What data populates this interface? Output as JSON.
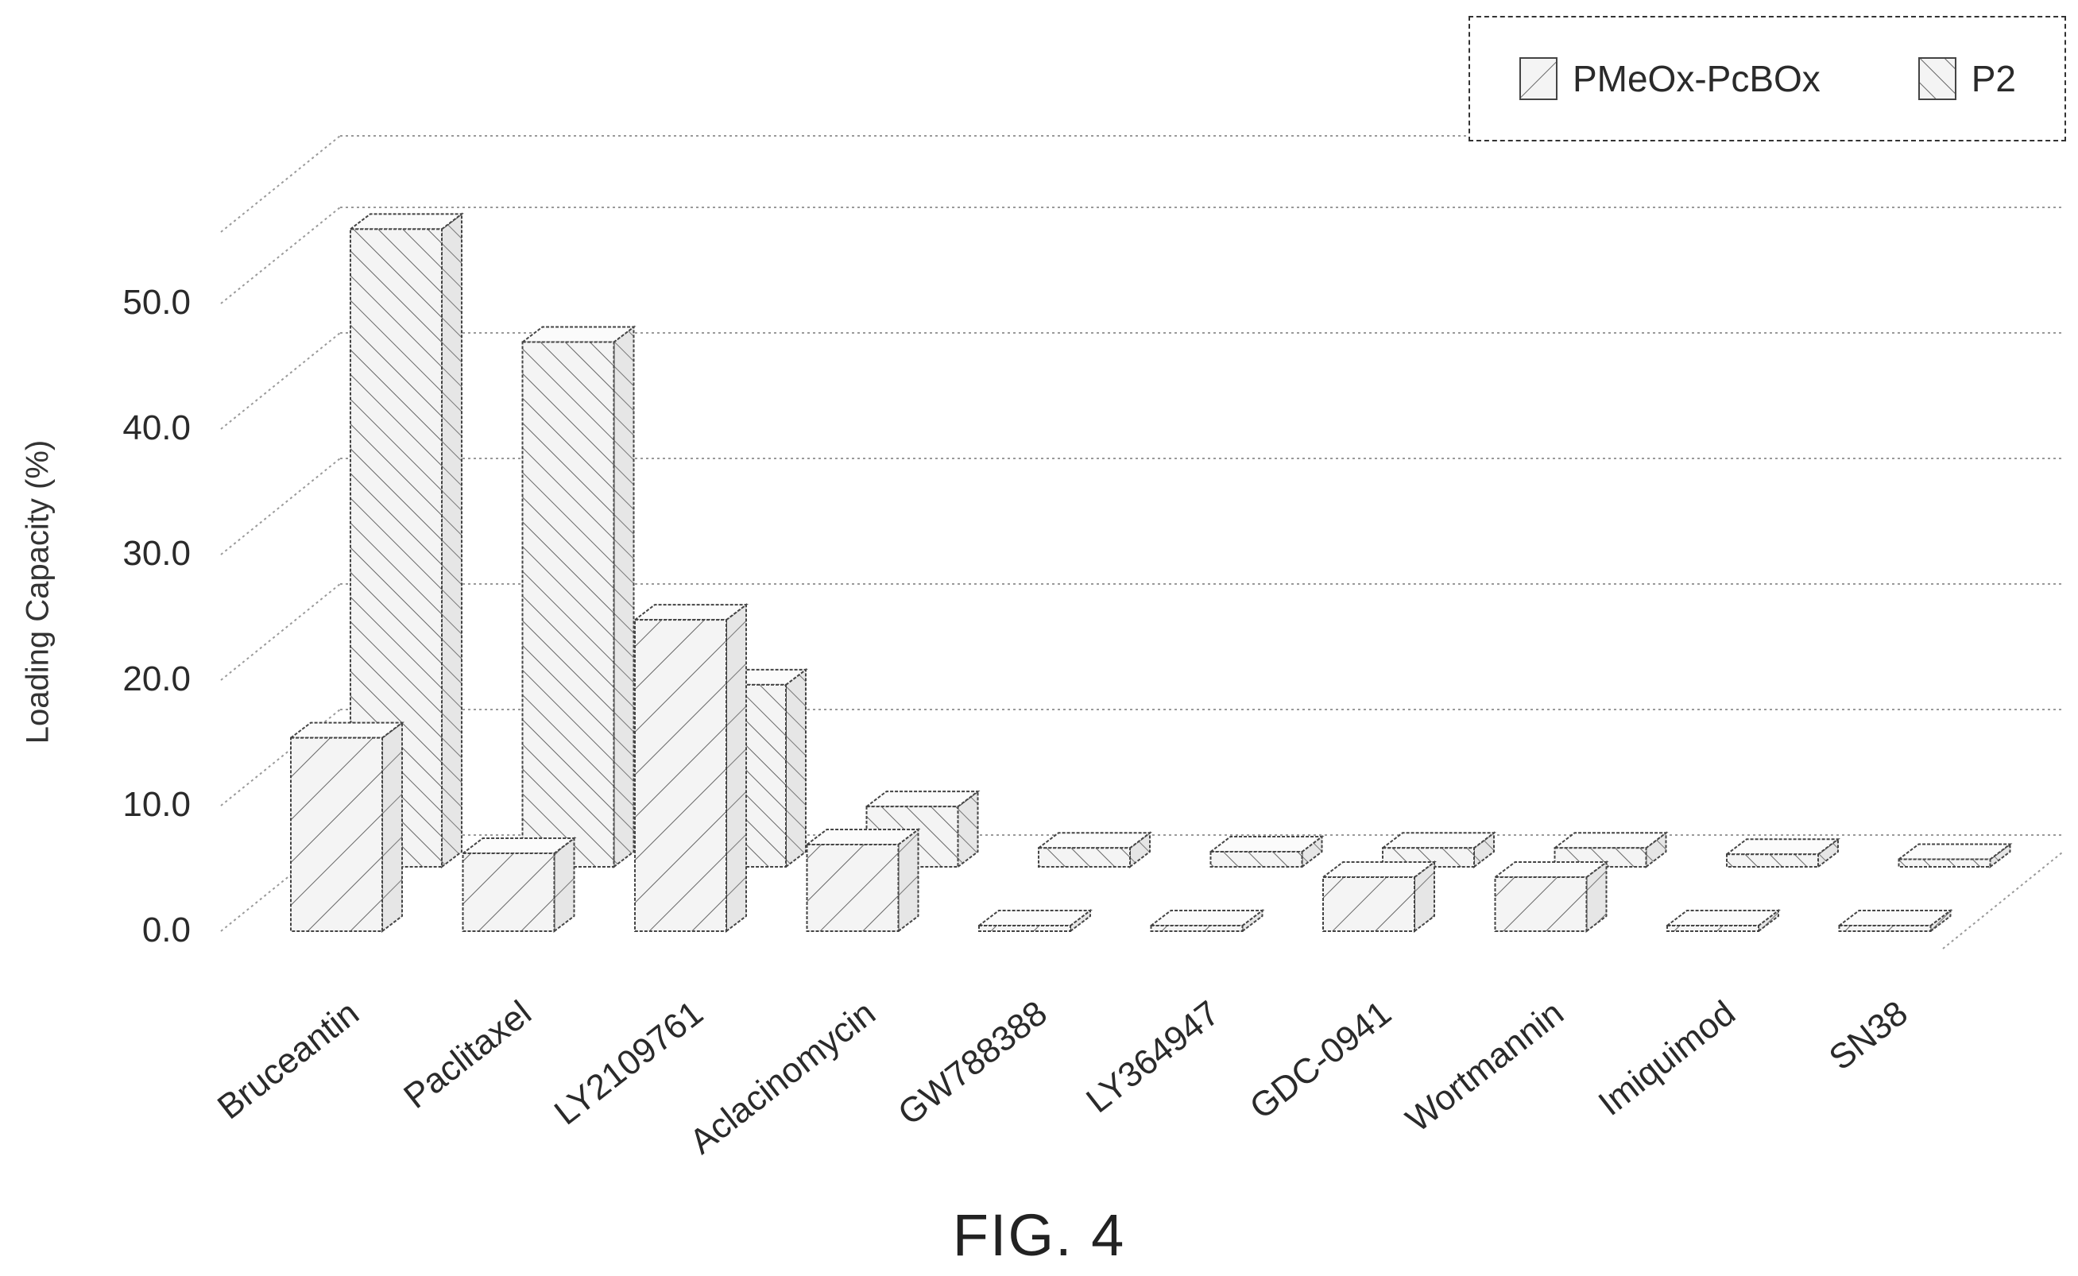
{
  "figure": {
    "caption": "FIG. 4"
  },
  "chart_data": {
    "type": "bar",
    "style": "3d-grouped-bar",
    "ylabel": "Loading Capacity (%)",
    "ylim": [
      0,
      50
    ],
    "yticks": [
      "0.0",
      "10.0",
      "20.0",
      "30.0",
      "40.0",
      "50.0"
    ],
    "grid": true,
    "legend_position": "top-right",
    "categories": [
      "Bruceantin",
      "Paclitaxel",
      "LY2109761",
      "Aclacinomycin",
      "GW788388",
      "LY364947",
      "GDC-0941",
      "Wortmannin",
      "Imiquimod",
      "SN38"
    ],
    "series": [
      {
        "name": "PMeOx-PcBOx",
        "pattern": "forward-hatch",
        "values": [
          15.4,
          6.2,
          24.8,
          6.9,
          0.0,
          0.0,
          4.3,
          4.3,
          0.0,
          0.0
        ]
      },
      {
        "name": "P2",
        "pattern": "back-hatch",
        "values": [
          50.8,
          41.8,
          14.5,
          4.8,
          1.5,
          1.2,
          1.5,
          1.5,
          1.0,
          0.6
        ]
      }
    ],
    "colors": {
      "bar_front": "#f4f4f4",
      "bar_side": "#e6e6e6",
      "bar_top": "#fbfbfb",
      "outline": "#444444",
      "hatch": "#666666",
      "grid": "#9a9a9a"
    }
  }
}
